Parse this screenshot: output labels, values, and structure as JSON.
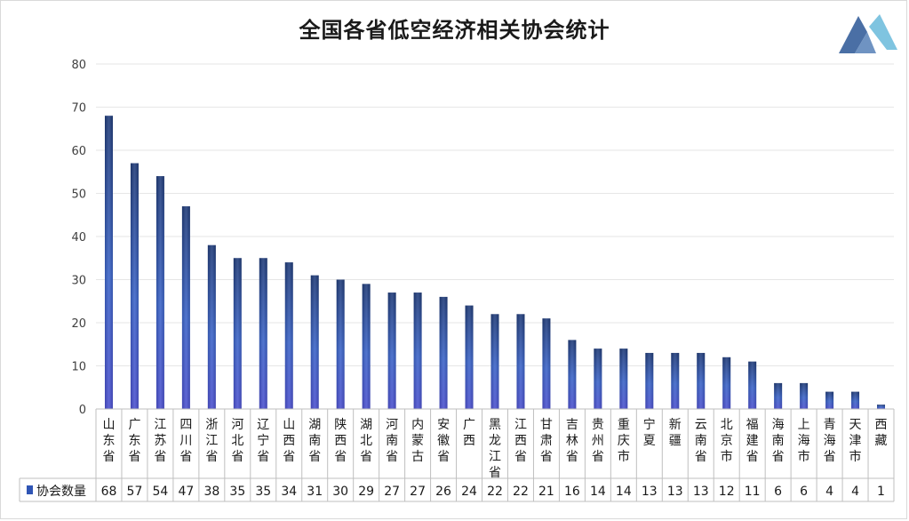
{
  "chart_data": {
    "type": "bar",
    "title": "全国各省低空经济相关协会统计",
    "categories": [
      "山东省",
      "广东省",
      "江苏省",
      "四川省",
      "浙江省",
      "河北省",
      "辽宁省",
      "山西省",
      "湖南省",
      "陕西省",
      "湖北省",
      "河南省",
      "内蒙古",
      "安徽省",
      "广西",
      "黑龙江省",
      "江西省",
      "甘肃省",
      "吉林省",
      "贵州省",
      "重庆市",
      "宁夏",
      "新疆",
      "云南省",
      "北京市",
      "福建省",
      "海南省",
      "上海市",
      "青海省",
      "天津市",
      "西藏"
    ],
    "series": [
      {
        "name": "协会数量",
        "values": [
          68,
          57,
          54,
          47,
          38,
          35,
          35,
          34,
          31,
          30,
          29,
          27,
          27,
          26,
          24,
          22,
          22,
          21,
          16,
          14,
          14,
          13,
          13,
          13,
          12,
          11,
          6,
          6,
          4,
          4,
          1
        ]
      }
    ],
    "ylim": [
      0,
      80
    ],
    "yticks": [
      0,
      10,
      20,
      30,
      40,
      50,
      60,
      70,
      80
    ],
    "xlabel": "",
    "ylabel": "",
    "grid": true,
    "legend": "bottom-left data table",
    "colors": {
      "bar_top": "#1e3a78",
      "bar_mid": "#3a63c8",
      "bar_bottom": "#4a4fcf",
      "grid": "#e6e6e6",
      "table_border": "#bfbfbf",
      "legend_swatch": "#2f55b5"
    }
  },
  "logo": {
    "icon": "stylized-mountain-logo-icon",
    "color_dark": "#4a6fa5",
    "color_light": "#7fc4e0"
  }
}
